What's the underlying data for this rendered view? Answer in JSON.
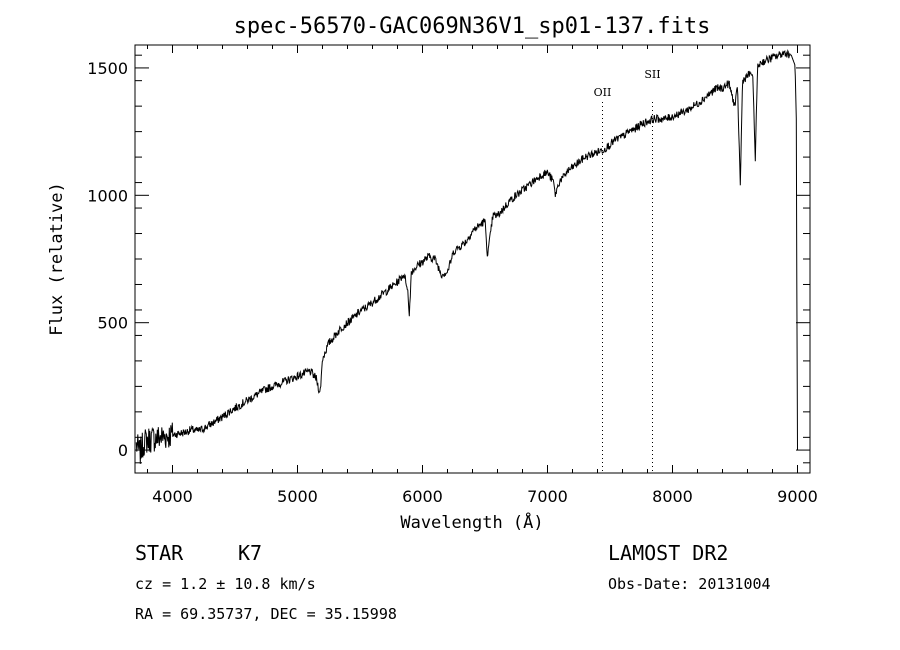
{
  "chart_data": {
    "type": "line",
    "title": "spec-56570-GAC069N36V1_sp01-137.fits",
    "xlabel": "Wavelength (Å)",
    "ylabel": "Flux (relative)",
    "xlim": [
      3700,
      9100
    ],
    "ylim": [
      -90,
      1590
    ],
    "xticks": [
      4000,
      5000,
      6000,
      7000,
      8000,
      9000
    ],
    "yticks": [
      0,
      500,
      1000,
      1500
    ],
    "series": [
      {
        "x": [
          3710,
          3740,
          3770,
          3800,
          3850,
          3900,
          3950,
          4000,
          4050,
          4100,
          4150,
          4200,
          4250,
          4300,
          4350,
          4400,
          4450,
          4500,
          4550,
          4600,
          4650,
          4700,
          4750,
          4800,
          4850,
          4900,
          4950,
          5000,
          5050,
          5100,
          5150,
          5180,
          5200,
          5250,
          5300,
          5350,
          5400,
          5450,
          5500,
          5550,
          5600,
          5650,
          5700,
          5750,
          5800,
          5850,
          5880,
          5893,
          5910,
          5950,
          6000,
          6050,
          6100,
          6150,
          6200,
          6250,
          6300,
          6350,
          6400,
          6450,
          6500,
          6520,
          6563,
          6600,
          6650,
          6700,
          6750,
          6800,
          6850,
          6900,
          6950,
          7000,
          7050,
          7060,
          7100,
          7130,
          7150,
          7200,
          7250,
          7300,
          7350,
          7400,
          7450,
          7500,
          7550,
          7600,
          7650,
          7700,
          7750,
          7800,
          7850,
          7900,
          7950,
          8000,
          8050,
          8100,
          8150,
          8200,
          8250,
          8300,
          8350,
          8400,
          8450,
          8498,
          8520,
          8542,
          8560,
          8600,
          8640,
          8662,
          8680,
          8700,
          8750,
          8800,
          8850,
          8900,
          8950,
          8980,
          8990,
          8995,
          9000
        ],
        "y": [
          20,
          -10,
          30,
          40,
          45,
          50,
          55,
          60,
          65,
          70,
          80,
          75,
          85,
          100,
          115,
          130,
          150,
          165,
          180,
          195,
          210,
          225,
          240,
          250,
          260,
          270,
          280,
          290,
          300,
          310,
          280,
          220,
          360,
          420,
          450,
          480,
          500,
          520,
          545,
          560,
          580,
          600,
          620,
          640,
          660,
          690,
          640,
          520,
          700,
          720,
          740,
          760,
          750,
          690,
          700,
          780,
          800,
          820,
          860,
          880,
          900,
          760,
          920,
          920,
          950,
          980,
          1000,
          1020,
          1040,
          1060,
          1080,
          1090,
          1050,
          1000,
          1060,
          1070,
          1090,
          1110,
          1130,
          1150,
          1160,
          1170,
          1180,
          1200,
          1220,
          1230,
          1250,
          1260,
          1280,
          1290,
          1300,
          1300,
          1300,
          1310,
          1320,
          1330,
          1345,
          1360,
          1380,
          1400,
          1420,
          1420,
          1440,
          1350,
          1420,
          1040,
          1450,
          1470,
          1480,
          1150,
          1500,
          1520,
          1530,
          1540,
          1550,
          1560,
          1550,
          1510,
          1300,
          500,
          0
        ]
      }
    ],
    "lines": [
      {
        "label": "OII",
        "x": 7440
      },
      {
        "label": "SII",
        "x": 7840
      }
    ],
    "grid": false
  },
  "info": {
    "object_type": "STAR",
    "subclass": "K7",
    "survey": "LAMOST DR2",
    "velocity": "cz = 1.2 ± 10.8 km/s",
    "obs_date": "Obs-Date: 20131004",
    "coords": "RA =  69.35737, DEC =  35.15998"
  }
}
